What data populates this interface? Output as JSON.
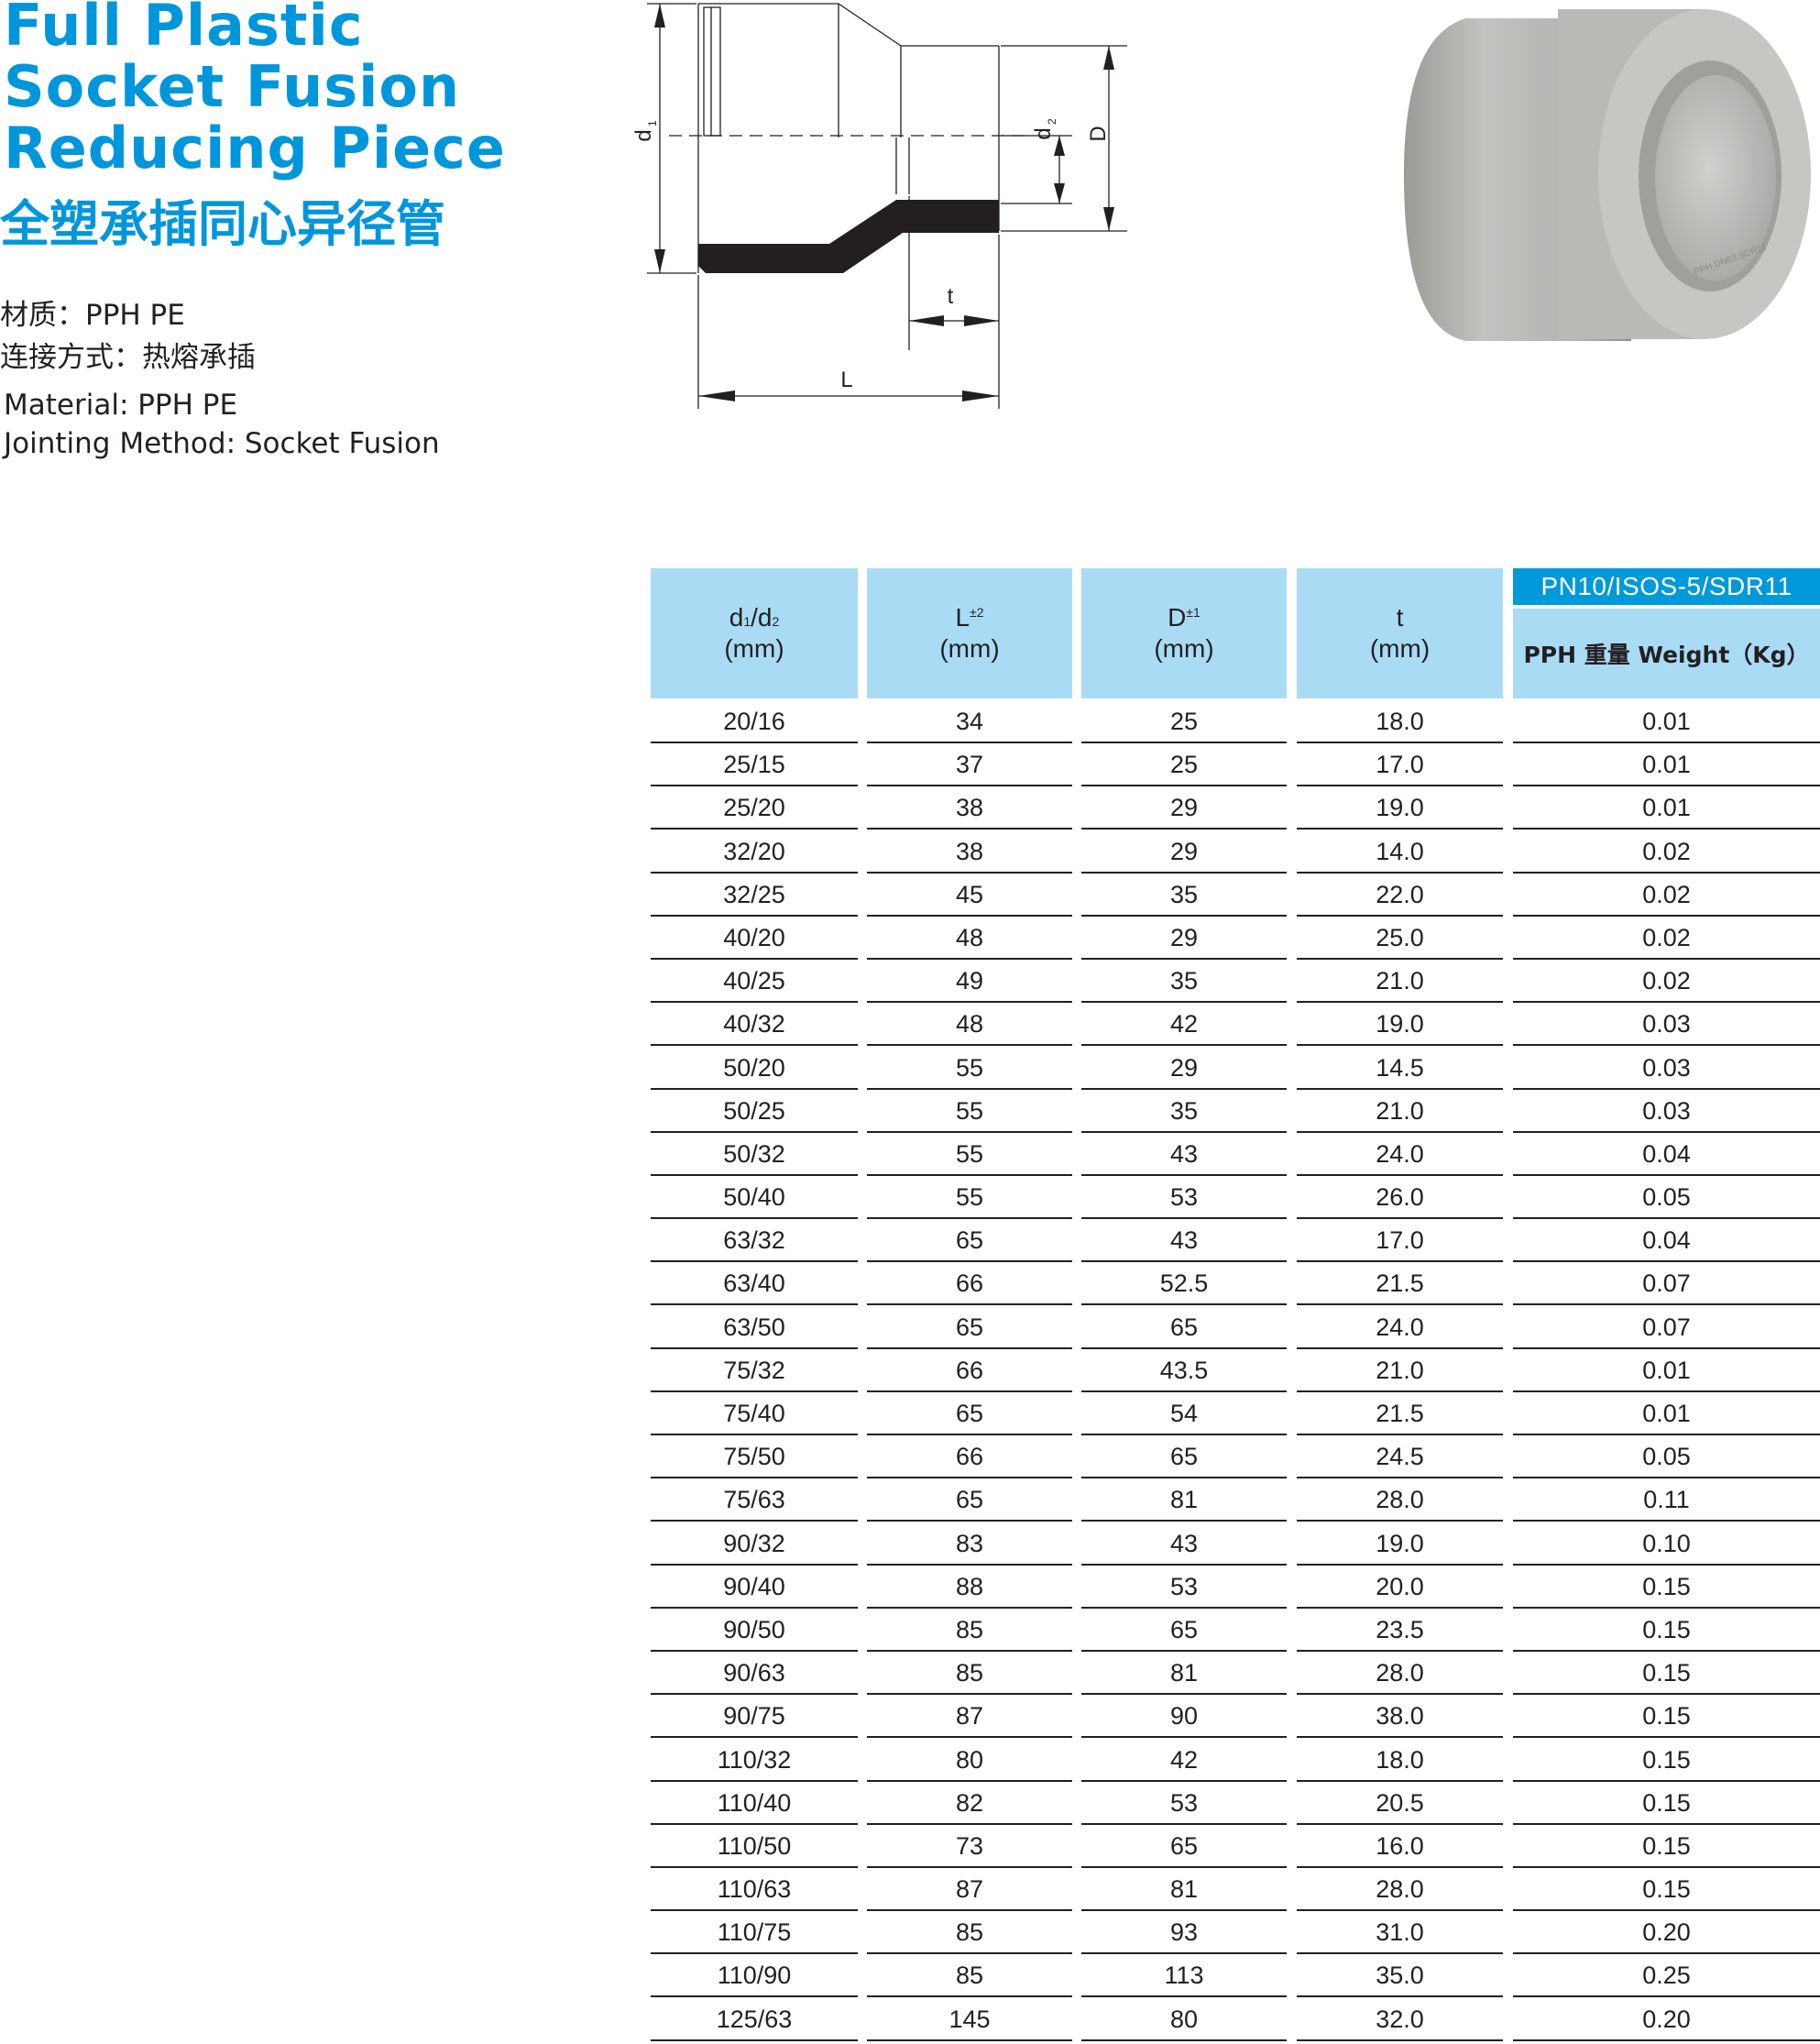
{
  "title": {
    "en_lines": [
      "Full Plastic",
      "Socket Fusion",
      "Reducing Piece"
    ],
    "cn": "全塑承插同心异径管"
  },
  "specs": {
    "material_cn": "材质：PPH PE",
    "jointing_cn": "连接方式：热熔承插",
    "material_en": "Material: PPH  PE",
    "jointing_en": "Jointing Method: Socket Fusion"
  },
  "diagram": {
    "labels": {
      "d1": "d",
      "d1_sub": "1",
      "d2": "d",
      "d2_sub": "2",
      "D": "D",
      "t": "t",
      "L": "L"
    }
  },
  "product_image": {
    "marking": "PPH DN63 SDR11",
    "colors": {
      "body": "#b5b5b2",
      "inner": "#c3c3c0",
      "shadow": "#8f8f8c"
    }
  },
  "table": {
    "headers": {
      "col1": {
        "main": "d",
        "sub1": "1",
        "slash": "/d",
        "sub2": "2",
        "unit": "(mm)"
      },
      "col2": {
        "main": "L",
        "sup": "±2",
        "unit": "(mm)"
      },
      "col3": {
        "main": "D",
        "sup": "±1",
        "unit": "(mm)"
      },
      "col4": {
        "main": "t",
        "unit": "(mm)"
      },
      "col5": {
        "group": "PN10/ISOS-5/SDR11",
        "sub": "PPH 重量 Weight（Kg）"
      }
    },
    "colors": {
      "header_bg": "#a9dbf5",
      "group_bg": "#0099da",
      "title": "#0096db"
    },
    "rows": [
      [
        "20/16",
        "34",
        "25",
        "18.0",
        "0.01"
      ],
      [
        "25/15",
        "37",
        "25",
        "17.0",
        "0.01"
      ],
      [
        "25/20",
        "38",
        "29",
        "19.0",
        "0.01"
      ],
      [
        "32/20",
        "38",
        "29",
        "14.0",
        "0.02"
      ],
      [
        "32/25",
        "45",
        "35",
        "22.0",
        "0.02"
      ],
      [
        "40/20",
        "48",
        "29",
        "25.0",
        "0.02"
      ],
      [
        "40/25",
        "49",
        "35",
        "21.0",
        "0.02"
      ],
      [
        "40/32",
        "48",
        "42",
        "19.0",
        "0.03"
      ],
      [
        "50/20",
        "55",
        "29",
        "14.5",
        "0.03"
      ],
      [
        "50/25",
        "55",
        "35",
        "21.0",
        "0.03"
      ],
      [
        "50/32",
        "55",
        "43",
        "24.0",
        "0.04"
      ],
      [
        "50/40",
        "55",
        "53",
        "26.0",
        "0.05"
      ],
      [
        "63/32",
        "65",
        "43",
        "17.0",
        "0.04"
      ],
      [
        "63/40",
        "66",
        "52.5",
        "21.5",
        "0.07"
      ],
      [
        "63/50",
        "65",
        "65",
        "24.0",
        "0.07"
      ],
      [
        "75/32",
        "66",
        "43.5",
        "21.0",
        "0.01"
      ],
      [
        "75/40",
        "65",
        "54",
        "21.5",
        "0.01"
      ],
      [
        "75/50",
        "66",
        "65",
        "24.5",
        "0.05"
      ],
      [
        "75/63",
        "65",
        "81",
        "28.0",
        "0.11"
      ],
      [
        "90/32",
        "83",
        "43",
        "19.0",
        "0.10"
      ],
      [
        "90/40",
        "88",
        "53",
        "20.0",
        "0.15"
      ],
      [
        "90/50",
        "85",
        "65",
        "23.5",
        "0.15"
      ],
      [
        "90/63",
        "85",
        "81",
        "28.0",
        "0.15"
      ],
      [
        "90/75",
        "87",
        "90",
        "38.0",
        "0.15"
      ],
      [
        "110/32",
        "80",
        "42",
        "18.0",
        "0.15"
      ],
      [
        "110/40",
        "82",
        "53",
        "20.5",
        "0.15"
      ],
      [
        "110/50",
        "73",
        "65",
        "16.0",
        "0.15"
      ],
      [
        "110/63",
        "87",
        "81",
        "28.0",
        "0.15"
      ],
      [
        "110/75",
        "85",
        "93",
        "31.0",
        "0.20"
      ],
      [
        "110/90",
        "85",
        "113",
        "35.0",
        "0.25"
      ],
      [
        "125/63",
        "145",
        "80",
        "32.0",
        "0.20"
      ]
    ]
  }
}
